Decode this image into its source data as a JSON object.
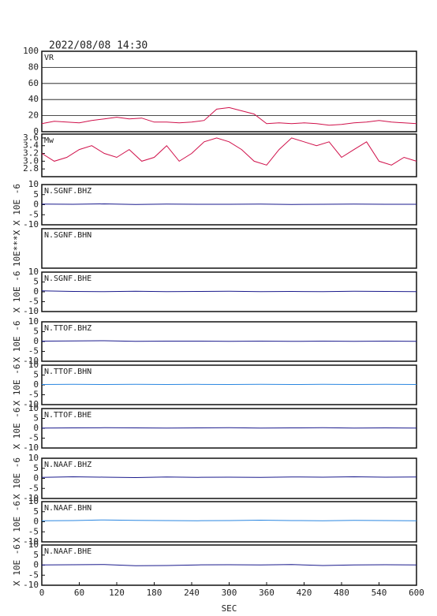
{
  "chart_data": [
    {
      "type": "line",
      "title": "2022/08/08 14:30",
      "grid": true,
      "xlim": [
        0,
        600
      ],
      "ylim": [
        0,
        100
      ],
      "yticks": [
        0,
        20,
        40,
        60,
        80,
        100
      ],
      "x": [
        0,
        20,
        40,
        60,
        80,
        100,
        120,
        140,
        160,
        180,
        200,
        220,
        240,
        260,
        280,
        300,
        320,
        340,
        360,
        380,
        400,
        420,
        440,
        460,
        480,
        500,
        520,
        540,
        560,
        580,
        600
      ],
      "series": [
        {
          "name": "VR",
          "color": "#d0104a",
          "values": [
            10,
            13,
            12,
            11,
            14,
            16,
            18,
            16,
            17,
            12,
            12,
            11,
            12,
            14,
            28,
            30,
            26,
            22,
            10,
            11,
            10,
            11,
            10,
            8,
            9,
            11,
            12,
            14,
            12,
            11,
            10
          ]
        }
      ]
    },
    {
      "type": "line",
      "xlim": [
        0,
        600
      ],
      "ylim": [
        2.6,
        3.7
      ],
      "yticks": [
        {
          "value": 2.8,
          "label": "2.8"
        },
        {
          "value": 3,
          "label": "3.0"
        },
        {
          "value": 3.2,
          "label": "3.2"
        },
        {
          "value": 3.4,
          "label": "3.4"
        },
        {
          "value": 3.6,
          "label": "3.6"
        }
      ],
      "x": [
        0,
        20,
        40,
        60,
        80,
        100,
        120,
        140,
        160,
        180,
        200,
        220,
        240,
        260,
        280,
        300,
        320,
        340,
        360,
        380,
        400,
        420,
        440,
        460,
        480,
        500,
        520,
        540,
        560,
        580,
        600
      ],
      "series": [
        {
          "name": "Mw",
          "color": "#d0104a",
          "values": [
            3.2,
            3.0,
            3.1,
            3.3,
            3.4,
            3.2,
            3.1,
            3.3,
            3.0,
            3.1,
            3.4,
            3.0,
            3.2,
            3.5,
            3.6,
            3.5,
            3.3,
            3.0,
            2.9,
            3.3,
            3.6,
            3.5,
            3.4,
            3.5,
            3.1,
            3.3,
            3.5,
            3.0,
            2.9,
            3.1,
            3.0
          ]
        }
      ]
    },
    {
      "type": "line",
      "ylabel": "X 10E -6",
      "xlim": [
        0,
        600
      ],
      "ylim": [
        -10,
        10
      ],
      "yticks": [
        -10,
        -5,
        0,
        5,
        10
      ],
      "x": [
        0,
        50,
        100,
        150,
        200,
        250,
        300,
        350,
        400,
        450,
        500,
        550,
        600
      ],
      "series": [
        {
          "name": "N.SGNF.BHZ",
          "color": "#1a1a8c",
          "values": [
            0.3,
            0.2,
            0.4,
            0.1,
            0.3,
            0.2,
            0.2,
            0.3,
            0.1,
            0.2,
            0.3,
            0.2,
            0.2
          ]
        }
      ]
    },
    {
      "type": "line",
      "ylabel": "10E***X",
      "xlim": [
        0,
        600
      ],
      "series": [
        {
          "name": "N.SGNF.BHN",
          "color": "#1a1a8c"
        }
      ]
    },
    {
      "type": "line",
      "ylabel": "X 10E -6",
      "xlim": [
        0,
        600
      ],
      "ylim": [
        -10,
        10
      ],
      "yticks": [
        -10,
        -5,
        0,
        5,
        10
      ],
      "x": [
        0,
        50,
        100,
        150,
        200,
        250,
        300,
        350,
        400,
        450,
        500,
        550,
        600
      ],
      "series": [
        {
          "name": "N.SGNF.BHE",
          "color": "#1a1a8c",
          "values": [
            0.5,
            0.2,
            0.1,
            0.3,
            0.1,
            0.2,
            0.3,
            0.1,
            0.2,
            0.1,
            0.3,
            0.2,
            0.1
          ]
        }
      ]
    },
    {
      "type": "line",
      "ylabel": "X 10E -6",
      "xlim": [
        0,
        600
      ],
      "ylim": [
        -10,
        10
      ],
      "yticks": [
        -10,
        -5,
        0,
        5,
        10
      ],
      "x": [
        0,
        50,
        100,
        150,
        200,
        250,
        300,
        350,
        400,
        450,
        500,
        550,
        600
      ],
      "series": [
        {
          "name": "N.TTOF.BHZ",
          "color": "#1a1a8c",
          "values": [
            0.2,
            0.3,
            0.4,
            0.1,
            0.2,
            0.2,
            0.1,
            0.2,
            0.1,
            0.2,
            0.1,
            0.2,
            0.1
          ]
        }
      ]
    },
    {
      "type": "line",
      "ylabel": "X 10E -6",
      "xlim": [
        0,
        600
      ],
      "ylim": [
        -10,
        10
      ],
      "yticks": [
        -10,
        -5,
        0,
        5,
        10
      ],
      "x": [
        0,
        50,
        100,
        150,
        200,
        250,
        300,
        350,
        400,
        450,
        500,
        550,
        600
      ],
      "series": [
        {
          "name": "N.TTOF.BHN",
          "color": "#2a86e0",
          "values": [
            0.2,
            0.3,
            0.2,
            0.3,
            0.2,
            0.3,
            0.2,
            0.3,
            0.2,
            0.3,
            0.2,
            0.3,
            0.2
          ]
        }
      ]
    },
    {
      "type": "line",
      "ylabel": "X 10E -6",
      "xlim": [
        0,
        600
      ],
      "ylim": [
        -10,
        10
      ],
      "yticks": [
        -10,
        -5,
        0,
        5,
        10
      ],
      "x": [
        0,
        50,
        100,
        150,
        200,
        250,
        300,
        350,
        400,
        450,
        500,
        550,
        600
      ],
      "series": [
        {
          "name": "N.TTOF.BHE",
          "color": "#1a1a8c",
          "values": [
            0.1,
            0.2,
            0.3,
            0.2,
            0.1,
            0.2,
            0.3,
            0.1,
            0.2,
            0.3,
            0.1,
            0.2,
            0.1
          ]
        }
      ]
    },
    {
      "type": "line",
      "ylabel": "X 10E -6",
      "xlim": [
        0,
        600
      ],
      "ylim": [
        -10,
        10
      ],
      "yticks": [
        -10,
        -5,
        0,
        5,
        10
      ],
      "x": [
        0,
        50,
        100,
        150,
        200,
        250,
        300,
        350,
        400,
        450,
        500,
        550,
        600
      ],
      "series": [
        {
          "name": "N.NAAF.BHZ",
          "color": "#1a1a8c",
          "values": [
            0.5,
            0.8,
            0.6,
            0.4,
            0.7,
            0.5,
            0.6,
            0.5,
            0.7,
            0.6,
            0.8,
            0.6,
            0.7
          ]
        }
      ]
    },
    {
      "type": "line",
      "ylabel": "X 10E -6",
      "xlim": [
        0,
        600
      ],
      "ylim": [
        -10,
        10
      ],
      "yticks": [
        -10,
        -5,
        0,
        5,
        10
      ],
      "x": [
        0,
        50,
        100,
        150,
        200,
        250,
        300,
        350,
        400,
        450,
        500,
        550,
        600
      ],
      "series": [
        {
          "name": "N.NAAF.BHN",
          "color": "#2a86e0",
          "values": [
            0.5,
            0.6,
            0.9,
            0.7,
            0.6,
            0.5,
            0.6,
            0.8,
            0.6,
            0.5,
            0.7,
            0.6,
            0.5
          ]
        }
      ]
    },
    {
      "type": "line",
      "ylabel": "X 10E -6",
      "xlabel": "SEC",
      "xlim": [
        0,
        600
      ],
      "xticks": [
        0,
        60,
        120,
        180,
        240,
        300,
        360,
        420,
        480,
        540,
        600
      ],
      "ylim": [
        -10,
        10
      ],
      "yticks": [
        -10,
        -5,
        0,
        5,
        10
      ],
      "x": [
        0,
        50,
        100,
        150,
        200,
        250,
        300,
        350,
        400,
        450,
        500,
        550,
        600
      ],
      "series": [
        {
          "name": "N.NAAF.BHE",
          "color": "#1a1a8c",
          "values": [
            0.1,
            0.2,
            0.3,
            -0.3,
            -0.2,
            0.1,
            0.2,
            0.1,
            0.3,
            -0.2,
            0.1,
            0.2,
            0.1
          ]
        }
      ]
    }
  ]
}
